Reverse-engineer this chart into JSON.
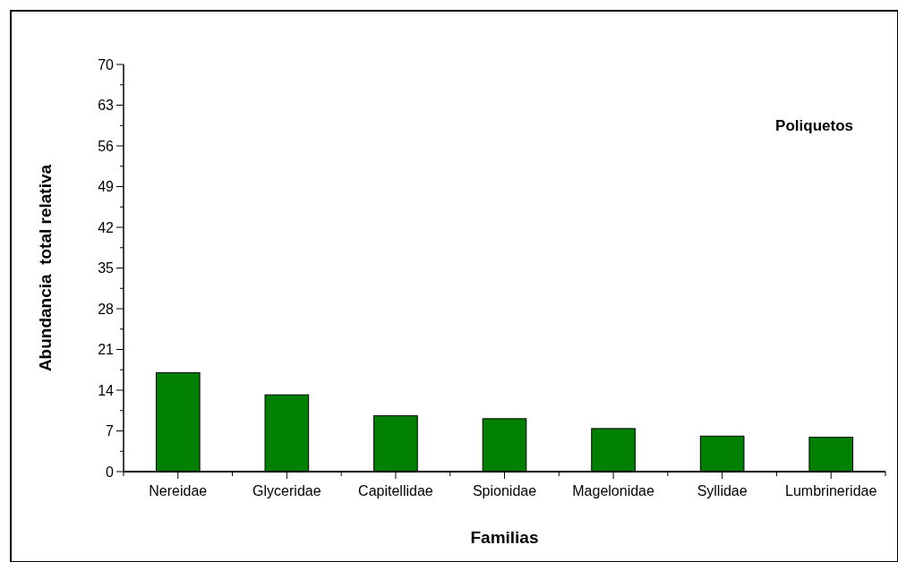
{
  "chart_data": {
    "type": "bar",
    "title": "Poliquetos",
    "xlabel": "Familias",
    "ylabel": "Abundancia  total relativa",
    "categories": [
      "Nereidae",
      "Glyceridae",
      "Capitellidae",
      "Spionidae",
      "Magelonidae",
      "Syllidae",
      "Lumbrineridae"
    ],
    "values": [
      17.0,
      13.2,
      9.6,
      9.1,
      7.4,
      6.1,
      5.9
    ],
    "color": "#008000",
    "ylim": [
      0,
      70
    ],
    "yticks": [
      0,
      {
        "value": 3.5,
        "label": null
      },
      7,
      {
        "value": 10.5,
        "label": null
      },
      14,
      {
        "value": 17.5,
        "label": null
      },
      21,
      {
        "value": 24.5,
        "label": null
      },
      28,
      {
        "value": 31.5,
        "label": null
      },
      35,
      {
        "value": 38.5,
        "label": null
      },
      42,
      {
        "value": 45.5,
        "label": null
      },
      49,
      {
        "value": 52.5,
        "label": null
      },
      56,
      {
        "value": 59.5,
        "label": null
      },
      63,
      {
        "value": 66.5,
        "label": null
      },
      70
    ],
    "grid": false
  }
}
